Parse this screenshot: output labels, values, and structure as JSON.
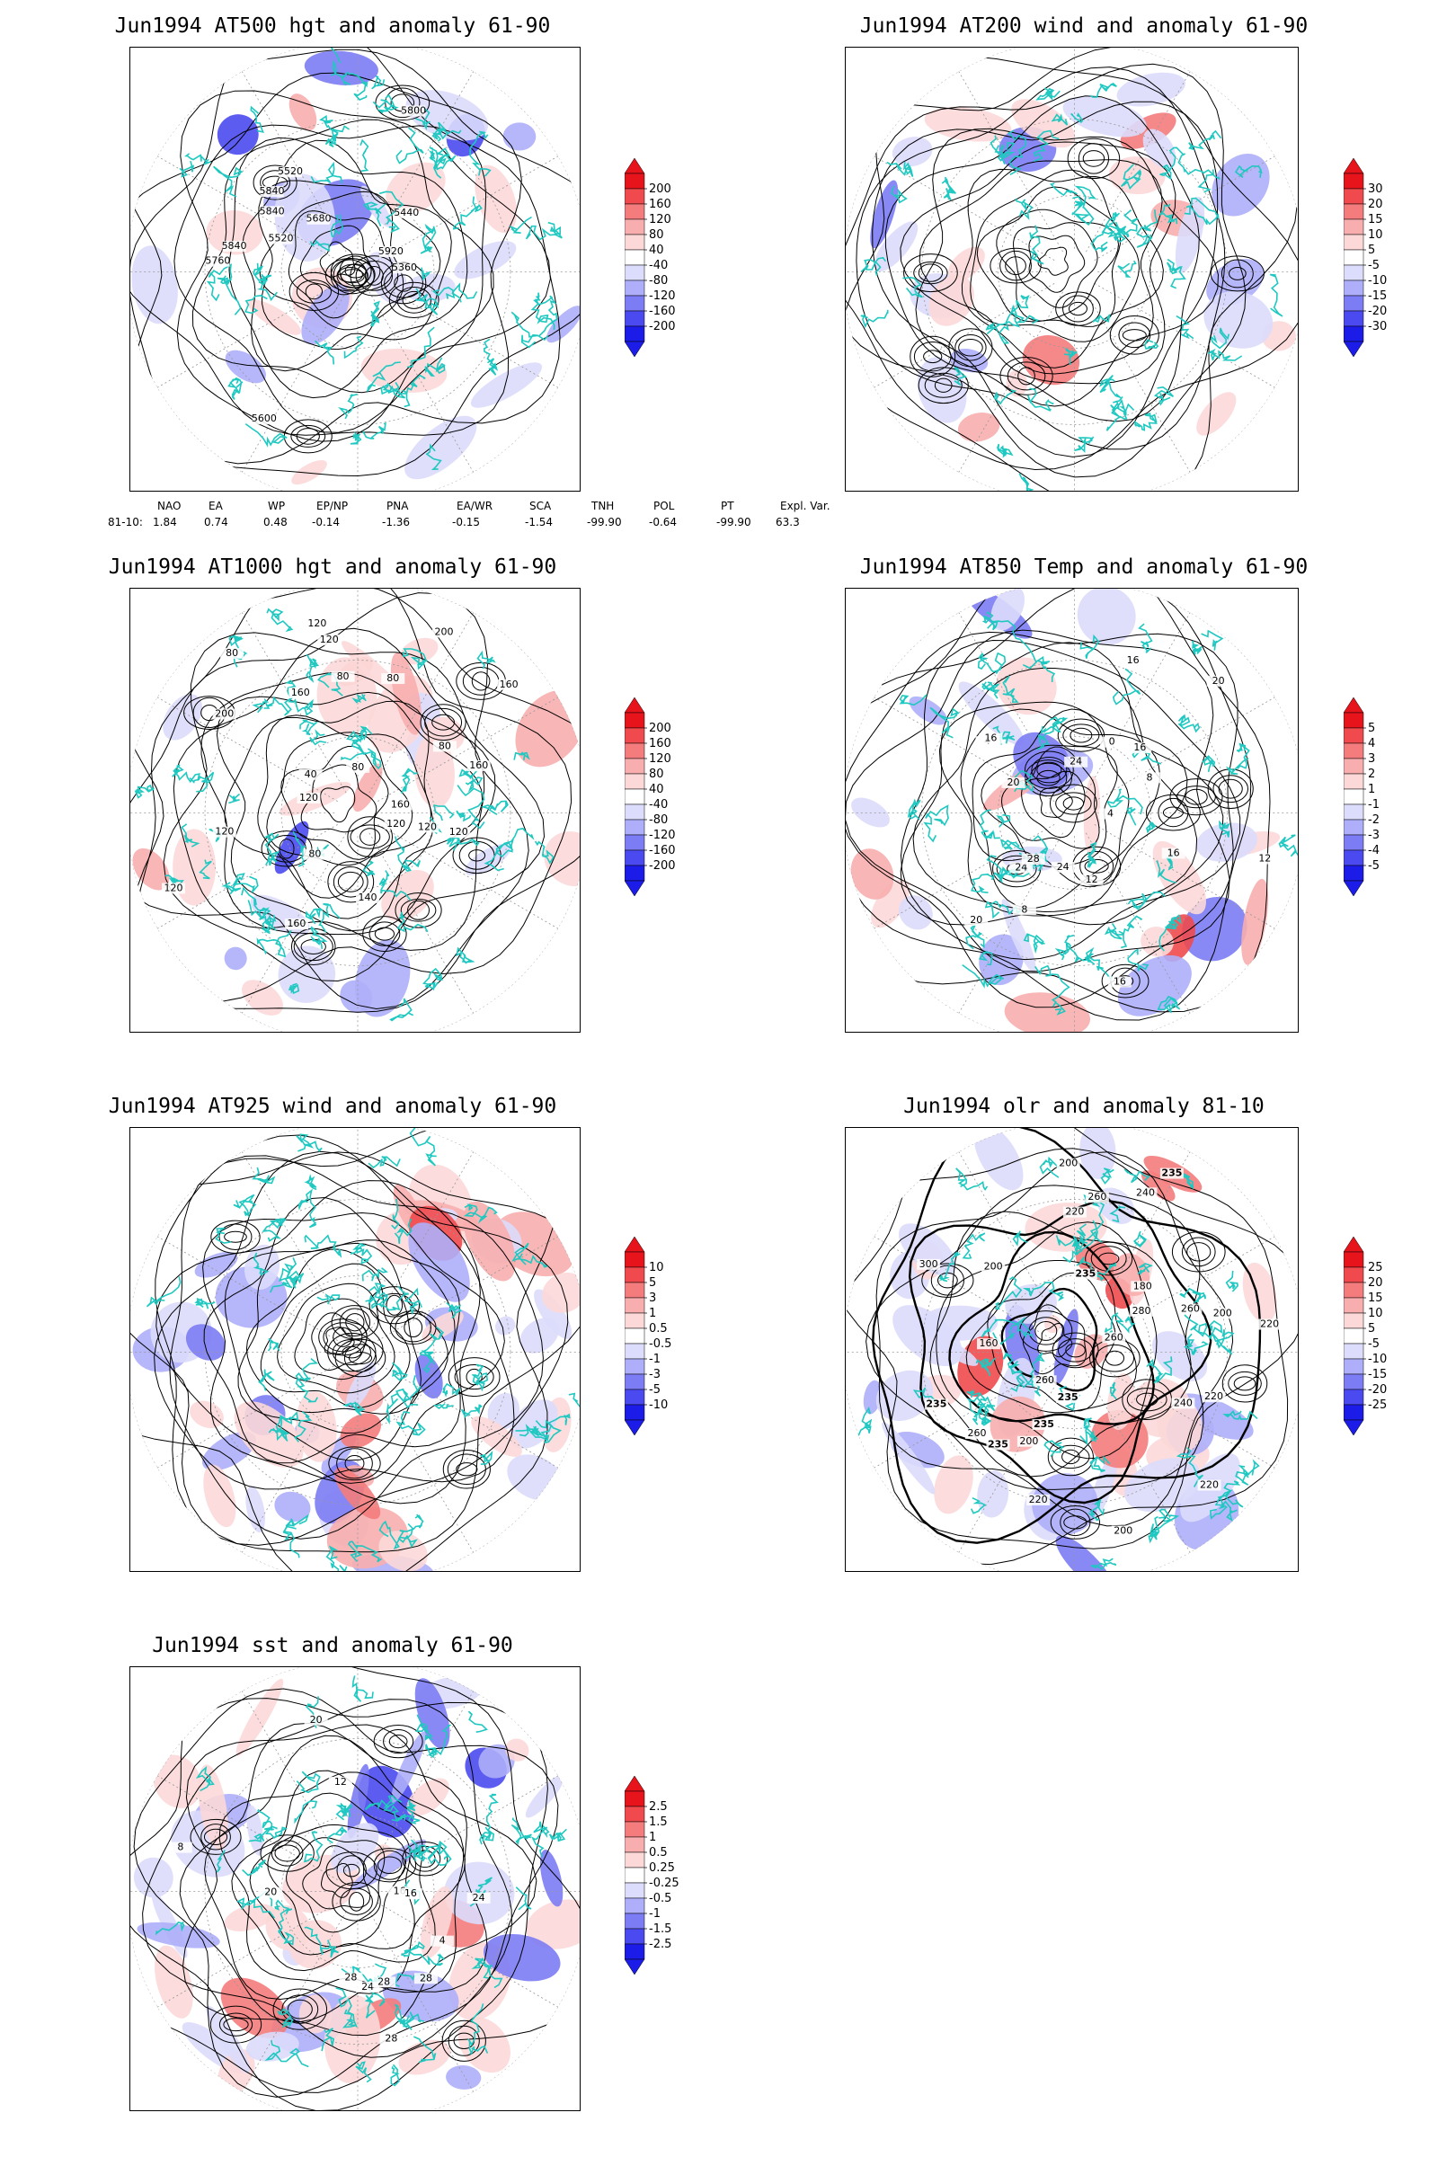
{
  "panels": [
    {
      "id": "p1",
      "title": "Jun1994 AT500 hgt and anomaly 61-90",
      "kind": "hgt",
      "colorbar": [
        "200",
        "160",
        "120",
        "80",
        "40",
        "-40",
        "-80",
        "-120",
        "-160",
        "-200"
      ],
      "contour_labels": [
        "5840",
        "5600",
        "5520",
        "5520",
        "5360",
        "5440",
        "5800",
        "5680",
        "5760",
        "5840",
        "5840",
        "5920"
      ]
    },
    {
      "id": "p2",
      "title": "Jun1994 AT200 wind and anomaly 61-90",
      "kind": "wind",
      "colorbar": [
        "30",
        "20",
        "15",
        "10",
        "5",
        "-5",
        "-10",
        "-15",
        "-20",
        "-30"
      ],
      "contour_labels": []
    },
    {
      "id": "p3",
      "title": "Jun1994 AT1000 hgt and anomaly 61-90",
      "kind": "hgt",
      "colorbar": [
        "200",
        "160",
        "120",
        "80",
        "40",
        "-40",
        "-80",
        "-120",
        "-160",
        "-200"
      ],
      "contour_labels": [
        "120",
        "80",
        "160",
        "160",
        "200",
        "120",
        "80",
        "160",
        "120",
        "80",
        "40",
        "140",
        "120",
        "160",
        "80",
        "120",
        "80",
        "200",
        "160",
        "80",
        "120",
        "120",
        "120"
      ]
    },
    {
      "id": "p4",
      "title": "Jun1994 AT850 Temp and anomaly 61-90",
      "kind": "temp",
      "colorbar": [
        "5",
        "4",
        "3",
        "2",
        "1",
        "-1",
        "-2",
        "-3",
        "-4",
        "-5"
      ],
      "contour_labels": [
        "16",
        "12",
        "8",
        "16",
        "20",
        "24",
        "4",
        "0",
        "4",
        "8",
        "12",
        "16",
        "20",
        "28",
        "24",
        "16",
        "16",
        "20",
        "24"
      ]
    },
    {
      "id": "p5",
      "title": "Jun1994 AT925 wind and anomaly 61-90",
      "kind": "wind",
      "colorbar": [
        "10",
        "5",
        "3",
        "1",
        "0.5",
        "-0.5",
        "-1",
        "-3",
        "-5",
        "-10"
      ],
      "contour_labels": []
    },
    {
      "id": "p6",
      "title": "Jun1994 olr and anomaly 81-10",
      "kind": "olr",
      "colorbar": [
        "25",
        "20",
        "15",
        "10",
        "5",
        "-5",
        "-10",
        "-15",
        "-20",
        "-25"
      ],
      "contour_labels": [
        "235",
        "240",
        "220",
        "260",
        "235",
        "200",
        "220",
        "235",
        "260",
        "220",
        "200",
        "235",
        "260",
        "300",
        "200",
        "280",
        "260",
        "235",
        "220",
        "200",
        "180",
        "160",
        "235",
        "260",
        "200",
        "220",
        "240"
      ]
    },
    {
      "id": "p7",
      "title": "Jun1994 sst and anomaly 61-90",
      "kind": "sst",
      "colorbar": [
        "2.5",
        "1.5",
        "1",
        "0.5",
        "0.25",
        "-0.25",
        "-0.5",
        "-1",
        "-1.5",
        "-2.5"
      ],
      "contour_labels": [
        "28",
        "24",
        "20",
        "16",
        "12",
        "8",
        "4",
        "28",
        "16",
        "20",
        "24",
        "28",
        "28"
      ]
    }
  ],
  "indices": {
    "headers": [
      "NAO",
      "EA",
      "WP",
      "EP/NP",
      "PNA",
      "EA/WR",
      "SCA",
      "TNH",
      "POL",
      "PT",
      "Expl. Var."
    ],
    "row_label": "81-10:",
    "values": [
      "1.84",
      "0.74",
      "0.48",
      "-0.14",
      "-1.36",
      "-0.15",
      "-1.54",
      "-99.90",
      "-0.64",
      "-99.90",
      "63.3"
    ]
  },
  "colors": {
    "coast": "#1fc8c0",
    "contour": "#000000",
    "red_scale": [
      "#e8141c",
      "#f04a4e",
      "#f47c7c",
      "#f8aeae",
      "#fcd8d8"
    ],
    "blue_scale": [
      "#dcdcfc",
      "#aeaefa",
      "#7c7cf4",
      "#4a4af0",
      "#1c1ce8"
    ]
  }
}
